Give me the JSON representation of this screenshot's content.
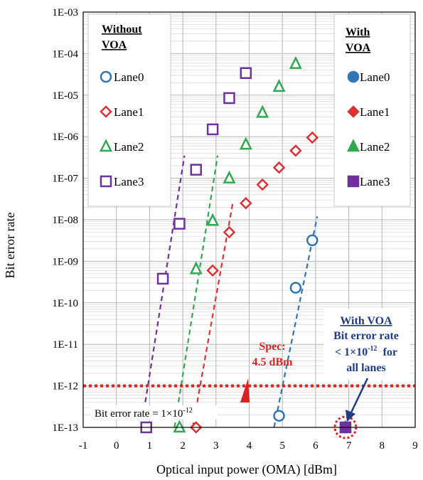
{
  "chart_data": {
    "type": "scatter",
    "xlabel": "Optical input power (OMA) [dBm]",
    "ylabel": "Bit error rate",
    "xlim": [
      -1,
      9
    ],
    "ylim": [
      "1E-13",
      "1E-03"
    ],
    "y_scale": "log",
    "x_ticks": [
      "-1",
      "0",
      "1",
      "2",
      "3",
      "4",
      "5",
      "6",
      "7",
      "8",
      "9"
    ],
    "y_ticks": [
      "1E-13",
      "1E-12",
      "1E-11",
      "1E-10",
      "1E-09",
      "1E-08",
      "1E-07",
      "1E-06",
      "1E-05",
      "1E-04",
      "1E-03"
    ],
    "grid": true,
    "legend_without": {
      "title_line1": "Without",
      "title_line2": "VOA",
      "entries": [
        "Lane0",
        "Lane1",
        "Lane2",
        "Lane3"
      ]
    },
    "legend_with": {
      "title_line1": "With",
      "title_line2": "VOA",
      "entries": [
        "Lane0",
        "Lane1",
        "Lane2",
        "Lane3"
      ]
    },
    "colors": {
      "Lane0": "#2e75b6",
      "Lane1": "#e03030",
      "Lane2": "#2fa84f",
      "Lane3": "#7030a0",
      "axis": "#000000",
      "grid": "#d0d0d0",
      "spec": "#e02020",
      "annotation": "#1f3b8a"
    },
    "series_without_voa": [
      {
        "lane": "Lane0",
        "marker": "circle",
        "points": [
          [
            4.9,
            1.9e-13
          ],
          [
            5.4,
            2.3e-10
          ],
          [
            5.9,
            3.2e-09
          ]
        ]
      },
      {
        "lane": "Lane1",
        "marker": "diamond",
        "points": [
          [
            2.4,
            1e-13
          ],
          [
            2.9,
            6e-10
          ],
          [
            3.4,
            5e-09
          ],
          [
            3.9,
            2.5e-08
          ],
          [
            4.4,
            7e-08
          ],
          [
            4.9,
            1.8e-07
          ],
          [
            5.4,
            4.6e-07
          ],
          [
            5.9,
            9.5e-07
          ]
        ]
      },
      {
        "lane": "Lane2",
        "marker": "triangle",
        "points": [
          [
            1.9,
            1e-13
          ],
          [
            2.4,
            6.5e-10
          ],
          [
            2.9,
            9.5e-09
          ],
          [
            3.4,
            1e-07
          ],
          [
            3.9,
            6.5e-07
          ],
          [
            4.4,
            3.8e-06
          ],
          [
            4.9,
            1.6e-05
          ],
          [
            5.4,
            5.7e-05
          ]
        ]
      },
      {
        "lane": "Lane3",
        "marker": "square",
        "points": [
          [
            0.9,
            1e-13
          ],
          [
            1.4,
            3.8e-10
          ],
          [
            1.9,
            8e-09
          ],
          [
            2.4,
            1.6e-07
          ],
          [
            2.9,
            1.5e-06
          ],
          [
            3.4,
            8.5e-06
          ],
          [
            3.9,
            3.4e-05
          ]
        ]
      }
    ],
    "series_with_voa": [
      {
        "lane": "Lane0",
        "marker": "circle-filled",
        "points": [
          [
            6.9,
            1e-13
          ]
        ]
      },
      {
        "lane": "Lane1",
        "marker": "diamond-filled",
        "points": [
          [
            6.9,
            1e-13
          ]
        ]
      },
      {
        "lane": "Lane2",
        "marker": "triangle-filled",
        "points": [
          [
            6.9,
            1e-13
          ]
        ]
      },
      {
        "lane": "Lane3",
        "marker": "square-filled",
        "points": [
          [
            6.9,
            1e-13
          ]
        ]
      }
    ],
    "fit_lines": [
      {
        "lane": "Lane0",
        "from": [
          4.75,
          1e-13
        ],
        "to": [
          6.05,
          1.2e-08
        ]
      },
      {
        "lane": "Lane1",
        "from": [
          2.3,
          1e-13
        ],
        "to": [
          3.5,
          2.4e-08
        ]
      },
      {
        "lane": "Lane2",
        "from": [
          1.75,
          1e-13
        ],
        "to": [
          3.05,
          3.5e-07
        ]
      },
      {
        "lane": "Lane3",
        "from": [
          0.75,
          1e-13
        ],
        "to": [
          2.05,
          3.5e-07
        ]
      }
    ],
    "spec_line": {
      "y": 1e-12,
      "label": "Bit error rate = 1×10",
      "label_exp": "-12"
    },
    "spec_annotation": {
      "line1": "Spec:",
      "line2": "4.5 dBm",
      "x": 4.5
    },
    "voa_annotation": {
      "line1": "With VOA",
      "line2": "Bit error rate",
      "line3a": "< 1×10",
      "line3exp": "-12",
      "line3b": "  for",
      "line4": "all lanes"
    }
  }
}
